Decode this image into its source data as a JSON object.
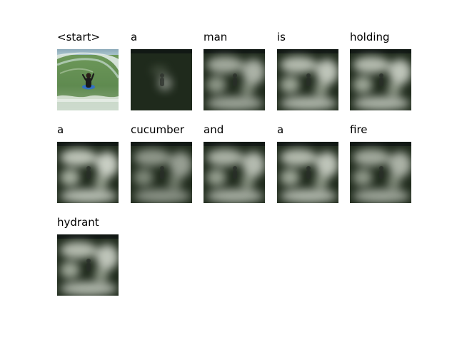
{
  "frames": [
    {
      "word": "<start>",
      "kind": "photo",
      "intensity": 1.0
    },
    {
      "word": "a",
      "kind": "attention",
      "intensity": 0.45
    },
    {
      "word": "man",
      "kind": "attention",
      "intensity": 0.7
    },
    {
      "word": "is",
      "kind": "attention",
      "intensity": 0.8
    },
    {
      "word": "holding",
      "kind": "attention",
      "intensity": 0.8
    },
    {
      "word": "a",
      "kind": "attention",
      "intensity": 0.85
    },
    {
      "word": "cucumber",
      "kind": "attention",
      "intensity": 0.6
    },
    {
      "word": "and",
      "kind": "attention",
      "intensity": 0.75
    },
    {
      "word": "a",
      "kind": "attention",
      "intensity": 0.8
    },
    {
      "word": "fire",
      "kind": "attention",
      "intensity": 0.7
    },
    {
      "word": "hydrant",
      "kind": "attention",
      "intensity": 0.8
    }
  ]
}
